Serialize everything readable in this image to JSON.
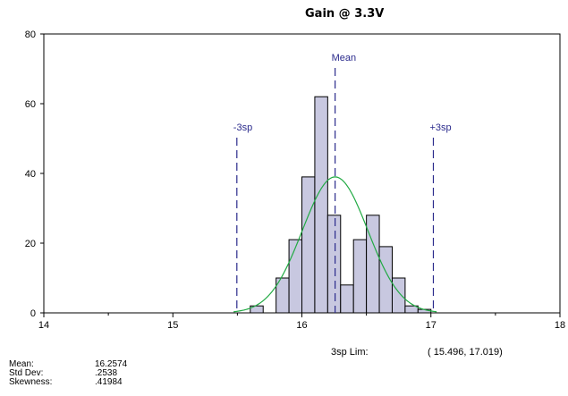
{
  "chart_data": {
    "type": "bar",
    "title": "Gain @ 3.3V",
    "xlim": [
      14,
      18
    ],
    "ylim": [
      0,
      80
    ],
    "xticks": [
      14,
      15,
      16,
      17,
      18
    ],
    "yticks": [
      0,
      20,
      40,
      60,
      80
    ],
    "bin_width": 0.1,
    "bins": [
      {
        "start": 15.6,
        "count": 2
      },
      {
        "start": 15.8,
        "count": 10
      },
      {
        "start": 15.9,
        "count": 21
      },
      {
        "start": 16.0,
        "count": 39
      },
      {
        "start": 16.1,
        "count": 62
      },
      {
        "start": 16.2,
        "count": 28
      },
      {
        "start": 16.3,
        "count": 8
      },
      {
        "start": 16.4,
        "count": 21
      },
      {
        "start": 16.5,
        "count": 28
      },
      {
        "start": 16.6,
        "count": 19
      },
      {
        "start": 16.7,
        "count": 10
      },
      {
        "start": 16.8,
        "count": 2
      },
      {
        "start": 16.9,
        "count": 1
      }
    ],
    "normal_curve": {
      "mean": 16.2574,
      "sd": 0.2538,
      "peak": 39
    },
    "reference_lines": [
      {
        "label": "-3sp",
        "x": 15.496
      },
      {
        "label": "Mean",
        "x": 16.2574
      },
      {
        "label": "+3sp",
        "x": 17.019
      }
    ],
    "grid": false,
    "legend": "none",
    "colors": {
      "bar_fill": "#c8c8e0",
      "bar_edge": "#000000",
      "curve": "#22aa44",
      "reference": "#2a2a8c"
    }
  },
  "stats": [
    {
      "label": "Mean:",
      "value": "16.2574"
    },
    {
      "label": "Std Dev:",
      "value": ".2538"
    },
    {
      "label": "Skewness:",
      "value": ".41984"
    }
  ],
  "limits": {
    "label": "3sp Lim:",
    "value": "( 15.496,   17.019)"
  }
}
